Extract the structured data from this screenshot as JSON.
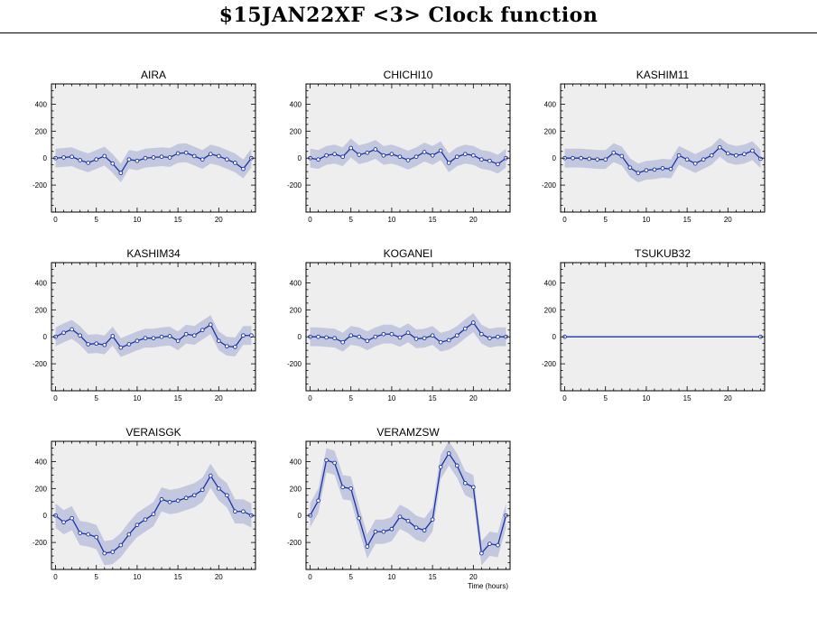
{
  "page": {
    "title": "$15JAN22XF <3>  Clock function",
    "xlabel": "Time (hours)"
  },
  "colors": {
    "panel_bg": "#eeeeee",
    "band": "#c4c8df",
    "line": "#1a34a8",
    "axis": "#000000"
  },
  "chart_data": [
    {
      "type": "line",
      "title": "AIRA",
      "xlim": [
        -0.5,
        24.5
      ],
      "ylim": [
        -400,
        550
      ],
      "xticks": [
        0,
        5,
        10,
        15,
        20
      ],
      "yticks": [
        -200,
        0,
        200,
        400
      ],
      "x": [
        0,
        1,
        2,
        3,
        4,
        5,
        6,
        7,
        8,
        9,
        10,
        11,
        12,
        13,
        14,
        15,
        16,
        17,
        18,
        19,
        20,
        21,
        22,
        23,
        24
      ],
      "values": [
        0,
        5,
        10,
        -15,
        -35,
        -10,
        15,
        -40,
        -110,
        -10,
        -20,
        0,
        5,
        10,
        5,
        35,
        40,
        15,
        -10,
        30,
        15,
        -10,
        -35,
        -80,
        0
      ],
      "band": 70
    },
    {
      "type": "line",
      "title": "CHICHI10",
      "xlim": [
        -0.5,
        24.5
      ],
      "ylim": [
        -400,
        550
      ],
      "xticks": [
        0,
        5,
        10,
        15,
        20
      ],
      "yticks": [
        -200,
        0,
        200,
        400
      ],
      "x": [
        0,
        1,
        2,
        3,
        4,
        5,
        6,
        7,
        8,
        9,
        10,
        11,
        12,
        13,
        14,
        15,
        16,
        17,
        18,
        19,
        20,
        21,
        22,
        23,
        24
      ],
      "values": [
        0,
        -10,
        20,
        30,
        10,
        75,
        25,
        40,
        65,
        20,
        30,
        10,
        -15,
        10,
        45,
        20,
        55,
        -35,
        10,
        30,
        20,
        -10,
        -20,
        -45,
        0
      ],
      "band": 70
    },
    {
      "type": "line",
      "title": "KASHIM11",
      "xlim": [
        -0.5,
        24.5
      ],
      "ylim": [
        -400,
        550
      ],
      "xticks": [
        0,
        5,
        10,
        15,
        20
      ],
      "yticks": [
        -200,
        0,
        200,
        400
      ],
      "x": [
        0,
        1,
        2,
        3,
        4,
        5,
        6,
        7,
        8,
        9,
        10,
        11,
        12,
        13,
        14,
        15,
        16,
        17,
        18,
        19,
        20,
        21,
        22,
        23,
        24
      ],
      "values": [
        0,
        0,
        0,
        -5,
        -10,
        -10,
        40,
        15,
        -70,
        -110,
        -90,
        -85,
        -75,
        -80,
        20,
        -10,
        -40,
        -10,
        20,
        80,
        35,
        20,
        30,
        55,
        -5
      ],
      "band": 70
    },
    {
      "type": "line",
      "title": "KASHIM34",
      "xlim": [
        -0.5,
        24.5
      ],
      "ylim": [
        -400,
        550
      ],
      "xticks": [
        0,
        5,
        10,
        15,
        20
      ],
      "yticks": [
        -200,
        0,
        200,
        400
      ],
      "x": [
        0,
        1,
        2,
        3,
        4,
        5,
        6,
        7,
        8,
        9,
        10,
        11,
        12,
        13,
        14,
        15,
        16,
        17,
        18,
        19,
        20,
        21,
        22,
        23,
        24
      ],
      "values": [
        0,
        30,
        55,
        10,
        -55,
        -50,
        -60,
        5,
        -80,
        -55,
        -30,
        -10,
        -10,
        0,
        5,
        -30,
        20,
        10,
        50,
        90,
        -30,
        -70,
        -75,
        10,
        10
      ],
      "band": 70
    },
    {
      "type": "line",
      "title": "KOGANEI",
      "xlim": [
        -0.5,
        24.5
      ],
      "ylim": [
        -400,
        550
      ],
      "xticks": [
        0,
        5,
        10,
        15,
        20
      ],
      "yticks": [
        -200,
        0,
        200,
        400
      ],
      "x": [
        0,
        1,
        2,
        3,
        4,
        5,
        6,
        7,
        8,
        9,
        10,
        11,
        12,
        13,
        14,
        15,
        16,
        17,
        18,
        19,
        20,
        21,
        22,
        23,
        24
      ],
      "values": [
        0,
        0,
        -5,
        -10,
        -40,
        10,
        0,
        -30,
        0,
        20,
        20,
        -5,
        30,
        -15,
        -10,
        10,
        -40,
        -25,
        10,
        60,
        105,
        20,
        -10,
        0,
        0
      ],
      "band": 70
    },
    {
      "type": "line",
      "title": "TSUKUB32",
      "xlim": [
        -0.5,
        24.5
      ],
      "ylim": [
        -400,
        550
      ],
      "xticks": [
        0,
        5,
        10,
        15,
        20
      ],
      "yticks": [
        -200,
        0,
        200,
        400
      ],
      "x": [
        0,
        24
      ],
      "values": [
        0,
        0
      ],
      "band": 0
    },
    {
      "type": "line",
      "title": "VERAISGK",
      "xlim": [
        -0.5,
        24.5
      ],
      "ylim": [
        -400,
        550
      ],
      "xticks": [
        0,
        5,
        10,
        15,
        20
      ],
      "yticks": [
        -200,
        0,
        200,
        400
      ],
      "x": [
        0,
        1,
        2,
        3,
        4,
        5,
        6,
        7,
        8,
        9,
        10,
        11,
        12,
        13,
        14,
        15,
        16,
        17,
        18,
        19,
        20,
        21,
        22,
        23,
        24
      ],
      "values": [
        0,
        -50,
        -20,
        -130,
        -140,
        -160,
        -280,
        -270,
        -220,
        -140,
        -70,
        -30,
        10,
        120,
        100,
        110,
        130,
        150,
        190,
        295,
        200,
        150,
        30,
        30,
        0
      ],
      "band": 90
    },
    {
      "type": "line",
      "title": "VERAMZSW",
      "xlim": [
        -0.5,
        24.5
      ],
      "ylim": [
        -400,
        550
      ],
      "xticks": [
        0,
        5,
        10,
        15,
        20
      ],
      "yticks": [
        -200,
        0,
        200,
        400
      ],
      "x": [
        0,
        1,
        2,
        3,
        4,
        5,
        6,
        7,
        8,
        9,
        10,
        11,
        12,
        13,
        14,
        15,
        16,
        17,
        18,
        19,
        20,
        21,
        22,
        23,
        24
      ],
      "values": [
        0,
        110,
        410,
        390,
        210,
        200,
        -20,
        -230,
        -120,
        -120,
        -100,
        -10,
        -40,
        -90,
        -110,
        -30,
        360,
        460,
        370,
        240,
        210,
        -280,
        -210,
        -220,
        0
      ],
      "band": 90
    }
  ]
}
